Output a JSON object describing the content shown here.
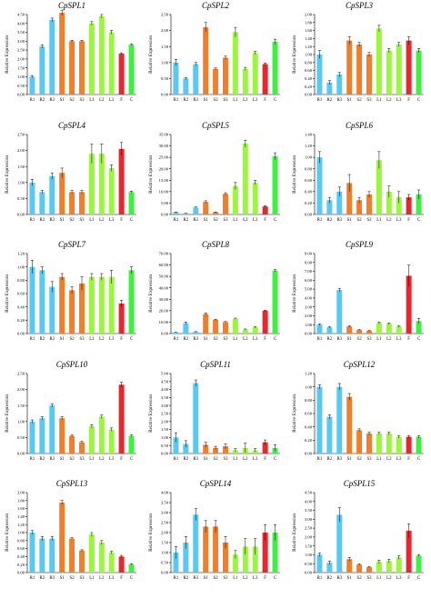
{
  "chart_data": [
    {
      "type": "bar",
      "title": "CpSPL1",
      "ylabel": "Relative Expression",
      "ylim": [
        0,
        4.5
      ],
      "yticks": [
        "0.00",
        "0.50",
        "1.00",
        "1.50",
        "2.00",
        "2.50",
        "3.00",
        "3.50",
        "4.00",
        "4.50"
      ],
      "categories": [
        "R1",
        "R2",
        "R3",
        "S1",
        "S2",
        "S3",
        "L1",
        "L2",
        "L3",
        "F",
        "C"
      ],
      "values": [
        1.0,
        2.7,
        4.2,
        4.6,
        3.0,
        3.0,
        4.0,
        4.4,
        3.5,
        2.3,
        2.8
      ],
      "errors": [
        0.05,
        0.1,
        0.1,
        0.15,
        0.05,
        0.05,
        0.1,
        0.1,
        0.1,
        0.05,
        0.05
      ]
    },
    {
      "type": "bar",
      "title": "CpSPL2",
      "ylabel": "Relative Expression",
      "ylim": [
        0,
        2.5
      ],
      "yticks": [
        "0.00",
        "0.50",
        "1.00",
        "1.50",
        "2.00",
        "2.50"
      ],
      "categories": [
        "R1",
        "R2",
        "R3",
        "S1",
        "S2",
        "S3",
        "L1",
        "L2",
        "L3",
        "F",
        "C"
      ],
      "values": [
        1.0,
        0.5,
        0.95,
        2.1,
        0.8,
        1.15,
        1.95,
        0.8,
        1.3,
        0.95,
        1.65
      ],
      "errors": [
        0.1,
        0.03,
        0.05,
        0.15,
        0.03,
        0.05,
        0.15,
        0.05,
        0.05,
        0.03,
        0.08
      ]
    },
    {
      "type": "bar",
      "title": "CpSPL3",
      "ylabel": "Relative Expression",
      "ylim": [
        0,
        2.0
      ],
      "yticks": [
        "0.00",
        "0.20",
        "0.40",
        "0.60",
        "0.80",
        "1.00",
        "1.20",
        "1.40",
        "1.60",
        "1.80",
        "2.00"
      ],
      "categories": [
        "R1",
        "R2",
        "R3",
        "S1",
        "S2",
        "S3",
        "L1",
        "L2",
        "L3",
        "F",
        "C"
      ],
      "values": [
        1.0,
        0.3,
        0.5,
        1.35,
        1.25,
        1.0,
        1.65,
        1.1,
        1.25,
        1.35,
        1.1
      ],
      "errors": [
        0.1,
        0.05,
        0.05,
        0.1,
        0.05,
        0.05,
        0.08,
        0.05,
        0.05,
        0.1,
        0.05
      ]
    },
    {
      "type": "bar",
      "title": "CpSPL4",
      "ylabel": "Relative Expression",
      "ylim": [
        0,
        2.5
      ],
      "yticks": [
        "0.00",
        "0.50",
        "1.00",
        "1.50",
        "2.00",
        "2.50"
      ],
      "categories": [
        "R1",
        "R2",
        "R3",
        "S1",
        "S2",
        "S3",
        "L1",
        "L2",
        "L3",
        "F",
        "C"
      ],
      "values": [
        1.0,
        0.7,
        1.2,
        1.3,
        0.7,
        0.7,
        1.9,
        1.9,
        1.45,
        2.05,
        0.7
      ],
      "errors": [
        0.1,
        0.05,
        0.1,
        0.15,
        0.05,
        0.05,
        0.3,
        0.3,
        0.1,
        0.2,
        0.03
      ]
    },
    {
      "type": "bar",
      "title": "CpSPL5",
      "ylabel": "Relative Expression",
      "ylim": [
        0,
        35
      ],
      "yticks": [
        "0.00",
        "5.00",
        "10.00",
        "15.00",
        "20.00",
        "25.00",
        "30.00",
        "35.00"
      ],
      "categories": [
        "R1",
        "R2",
        "R3",
        "S1",
        "S2",
        "S3",
        "L1",
        "L2",
        "L3",
        "F",
        "C"
      ],
      "values": [
        1.0,
        0.5,
        3.0,
        5.5,
        1.0,
        9.0,
        12.5,
        31.0,
        14.0,
        3.5,
        25.5
      ],
      "errors": [
        0.1,
        0.05,
        0.3,
        0.5,
        0.1,
        0.5,
        1.5,
        1.5,
        1.0,
        0.3,
        1.5
      ]
    },
    {
      "type": "bar",
      "title": "CpSPL6",
      "ylabel": "Relative Expression",
      "ylim": [
        0,
        1.4
      ],
      "yticks": [
        "0.00",
        "0.20",
        "0.40",
        "0.60",
        "0.80",
        "1.00",
        "1.20",
        "1.40"
      ],
      "categories": [
        "R1",
        "R2",
        "R3",
        "S1",
        "S2",
        "S3",
        "L1",
        "L2",
        "L3",
        "F",
        "C"
      ],
      "values": [
        1.0,
        0.25,
        0.4,
        0.55,
        0.25,
        0.35,
        0.95,
        0.4,
        0.3,
        0.3,
        0.35
      ],
      "errors": [
        0.1,
        0.05,
        0.08,
        0.15,
        0.05,
        0.05,
        0.15,
        0.1,
        0.1,
        0.05,
        0.08
      ]
    },
    {
      "type": "bar",
      "title": "CpSPL7",
      "ylabel": "Relative Expression",
      "ylim": [
        0,
        1.2
      ],
      "yticks": [
        "0.00",
        "0.20",
        "0.40",
        "0.60",
        "0.80",
        "1.00",
        "1.20"
      ],
      "categories": [
        "R1",
        "R2",
        "R3",
        "S1",
        "S2",
        "S3",
        "L1",
        "L2",
        "L3",
        "F",
        "C"
      ],
      "values": [
        1.0,
        0.95,
        0.7,
        0.85,
        0.65,
        0.75,
        0.85,
        0.85,
        0.85,
        0.45,
        0.95
      ],
      "errors": [
        0.1,
        0.05,
        0.08,
        0.05,
        0.05,
        0.1,
        0.05,
        0.05,
        0.1,
        0.05,
        0.05
      ]
    },
    {
      "type": "bar",
      "title": "CpSPL8",
      "ylabel": "Relative Expression",
      "ylim": [
        0,
        70
      ],
      "yticks": [
        "0.00",
        "10.00",
        "20.00",
        "30.00",
        "40.00",
        "50.00",
        "60.00",
        "70.00"
      ],
      "categories": [
        "R1",
        "R2",
        "R3",
        "S1",
        "S2",
        "S3",
        "L1",
        "L2",
        "L3",
        "F",
        "C"
      ],
      "values": [
        1.0,
        9.0,
        1.5,
        17.0,
        12.0,
        10.0,
        13.0,
        3.5,
        5.5,
        20.0,
        55.0
      ],
      "errors": [
        0.1,
        1.0,
        0.2,
        1.0,
        0.5,
        0.5,
        0.5,
        0.5,
        0.5,
        0.5,
        1.0
      ]
    },
    {
      "type": "bar",
      "title": "CpSPL9",
      "ylabel": "Relative Expression",
      "ylim": [
        0,
        9
      ],
      "yticks": [
        "0.00",
        "1.00",
        "2.00",
        "3.00",
        "4.00",
        "5.00",
        "6.00",
        "7.00",
        "8.00",
        "9.00"
      ],
      "categories": [
        "R1",
        "R2",
        "R3",
        "S1",
        "S2",
        "S3",
        "L1",
        "L2",
        "L3",
        "F",
        "C"
      ],
      "values": [
        1.0,
        0.7,
        4.9,
        0.8,
        0.4,
        0.3,
        1.2,
        1.1,
        0.8,
        6.5,
        1.4
      ],
      "errors": [
        0.1,
        0.1,
        0.2,
        0.1,
        0.05,
        0.05,
        0.1,
        0.1,
        0.1,
        1.2,
        0.3
      ]
    },
    {
      "type": "bar",
      "title": "CpSPL10",
      "ylabel": "Relative Expression",
      "ylim": [
        0,
        2.5
      ],
      "yticks": [
        "0.00",
        "0.50",
        "1.00",
        "1.50",
        "2.00",
        "2.50"
      ],
      "categories": [
        "R1",
        "R2",
        "R3",
        "S1",
        "S2",
        "S3",
        "L1",
        "L2",
        "L3",
        "F",
        "C"
      ],
      "values": [
        1.0,
        1.1,
        1.5,
        1.1,
        0.55,
        0.35,
        0.85,
        1.15,
        0.75,
        2.15,
        0.55
      ],
      "errors": [
        0.05,
        0.05,
        0.05,
        0.05,
        0.03,
        0.03,
        0.05,
        0.05,
        0.05,
        0.08,
        0.03
      ]
    },
    {
      "type": "bar",
      "title": "CpSPL11",
      "ylabel": "Relative Expression",
      "ylim": [
        0,
        5
      ],
      "yticks": [
        "0.00",
        "0.50",
        "1.00",
        "1.50",
        "2.00",
        "2.50",
        "3.00",
        "3.50",
        "4.00",
        "4.50",
        "5.00"
      ],
      "categories": [
        "R1",
        "R2",
        "R3",
        "S1",
        "S2",
        "S3",
        "L1",
        "L2",
        "L3",
        "F",
        "C"
      ],
      "values": [
        1.0,
        0.6,
        4.4,
        0.55,
        0.35,
        0.45,
        0.2,
        0.35,
        0.2,
        0.7,
        0.35
      ],
      "errors": [
        0.3,
        0.2,
        0.2,
        0.15,
        0.1,
        0.15,
        0.1,
        0.3,
        0.1,
        0.15,
        0.2
      ]
    },
    {
      "type": "bar",
      "title": "CpSPL12",
      "ylabel": "Relative Expression",
      "ylim": [
        0,
        1.2
      ],
      "yticks": [
        "0.00",
        "0.20",
        "0.40",
        "0.60",
        "0.80",
        "1.00",
        "1.20"
      ],
      "categories": [
        "R1",
        "R2",
        "R3",
        "S1",
        "S2",
        "S3",
        "L1",
        "L2",
        "L3",
        "F",
        "C"
      ],
      "values": [
        1.0,
        0.55,
        1.0,
        0.85,
        0.35,
        0.3,
        0.3,
        0.3,
        0.25,
        0.25,
        0.25
      ],
      "errors": [
        0.03,
        0.03,
        0.05,
        0.05,
        0.02,
        0.02,
        0.02,
        0.02,
        0.02,
        0.02,
        0.02
      ]
    },
    {
      "type": "bar",
      "title": "CpSPL13",
      "ylabel": "Relative Expression",
      "ylim": [
        0,
        2.0
      ],
      "yticks": [
        "0.00",
        "0.20",
        "0.40",
        "0.60",
        "0.80",
        "1.00",
        "1.20",
        "1.40",
        "1.60",
        "1.80",
        "2.00"
      ],
      "categories": [
        "R1",
        "R2",
        "R3",
        "S1",
        "S2",
        "S3",
        "L1",
        "L2",
        "L3",
        "F",
        "C"
      ],
      "values": [
        1.0,
        0.85,
        0.85,
        1.75,
        0.85,
        0.55,
        0.95,
        0.75,
        0.5,
        0.4,
        0.2
      ],
      "errors": [
        0.05,
        0.05,
        0.05,
        0.05,
        0.02,
        0.02,
        0.05,
        0.05,
        0.03,
        0.03,
        0.02
      ]
    },
    {
      "type": "bar",
      "title": "CpSPL14",
      "ylabel": "Relative Expression",
      "ylim": [
        0,
        4.0
      ],
      "yticks": [
        "0.00",
        "0.50",
        "1.00",
        "1.50",
        "2.00",
        "2.50",
        "3.00",
        "3.50",
        "4.00"
      ],
      "categories": [
        "R1",
        "R2",
        "R3",
        "S1",
        "S2",
        "S3",
        "L1",
        "L2",
        "L3",
        "F",
        "C"
      ],
      "values": [
        1.0,
        1.5,
        2.9,
        2.3,
        2.3,
        1.5,
        0.9,
        1.3,
        1.3,
        2.0,
        2.0
      ],
      "errors": [
        0.3,
        0.3,
        0.3,
        0.3,
        0.3,
        0.3,
        0.2,
        0.4,
        0.4,
        0.4,
        0.4
      ]
    },
    {
      "type": "bar",
      "title": "CpSPL15",
      "ylabel": "Relative Expression",
      "ylim": [
        0,
        4.5
      ],
      "yticks": [
        "0.00",
        "0.50",
        "1.00",
        "1.50",
        "2.00",
        "2.50",
        "3.00",
        "3.50",
        "4.00",
        "4.50"
      ],
      "categories": [
        "R1",
        "R2",
        "R3",
        "S1",
        "S2",
        "S3",
        "L1",
        "L2",
        "L3",
        "F",
        "C"
      ],
      "values": [
        1.0,
        0.55,
        3.25,
        0.75,
        0.45,
        0.3,
        0.6,
        0.65,
        0.85,
        2.35,
        0.95
      ],
      "errors": [
        0.1,
        0.1,
        0.4,
        0.1,
        0.05,
        0.05,
        0.1,
        0.1,
        0.1,
        0.4,
        0.05
      ]
    }
  ],
  "colors": {
    "R1": "#59C9F2",
    "R2": "#59C9F2",
    "R3": "#59C9F2",
    "S1": "#F07F2C",
    "S2": "#F07F2C",
    "S3": "#F07F2C",
    "L1": "#9CF53F",
    "L2": "#9CF53F",
    "L3": "#9CF53F",
    "F": "#E8262B",
    "C": "#40F040"
  }
}
